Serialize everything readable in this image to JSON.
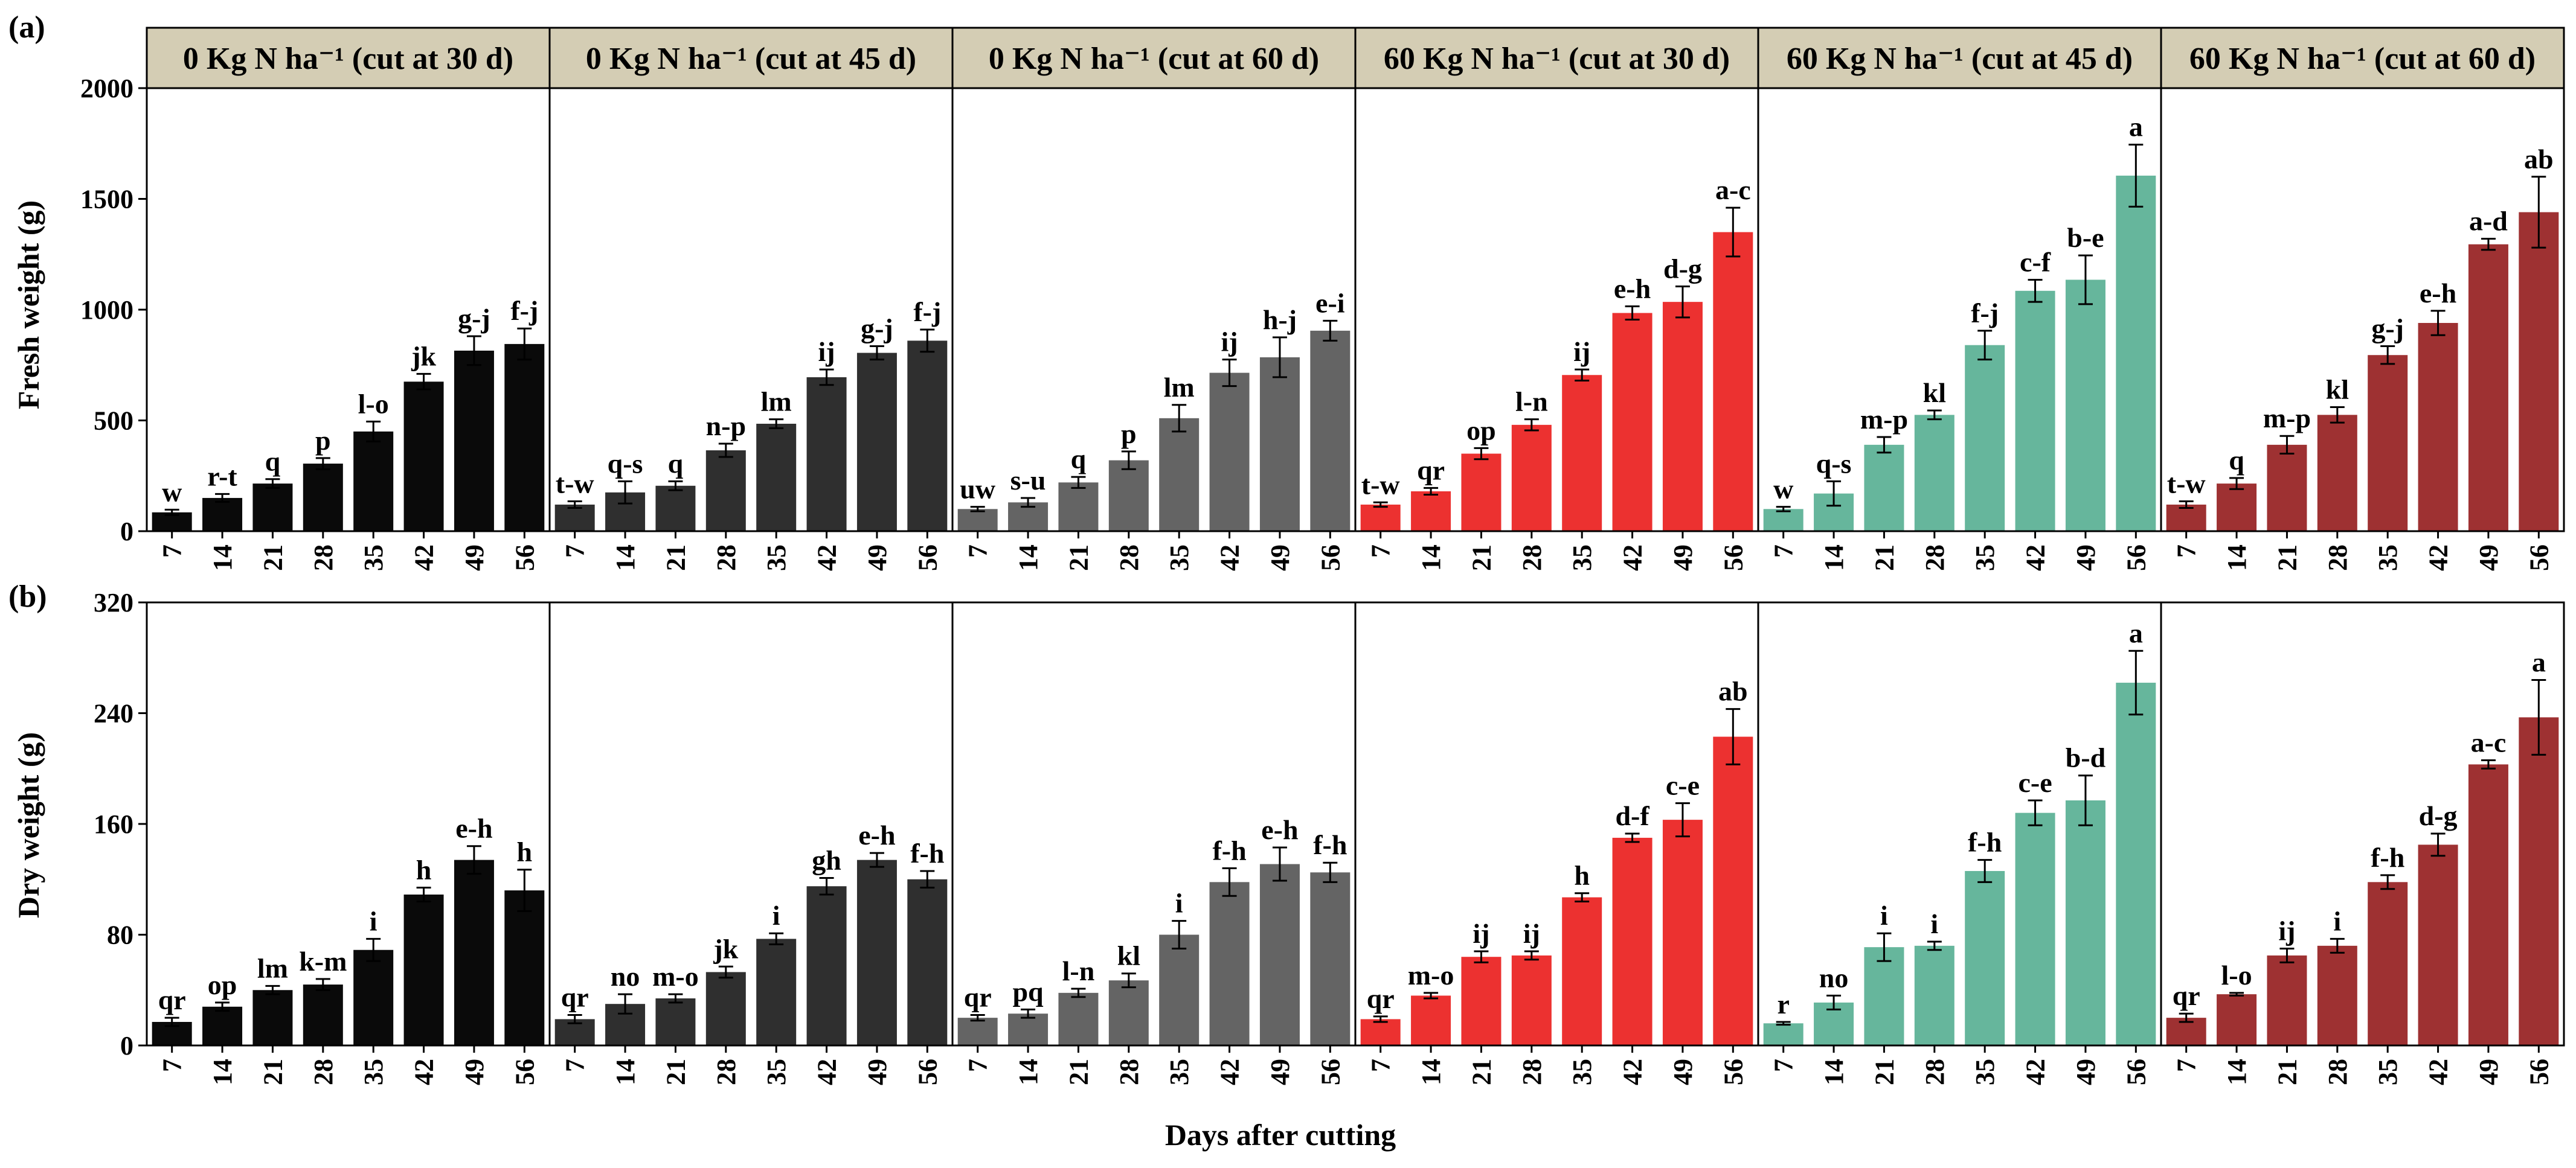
{
  "figure": {
    "x_axis_title": "Days after cutting",
    "days": [
      "7",
      "14",
      "21",
      "28",
      "35",
      "42",
      "49",
      "56"
    ],
    "colors": {
      "strip_background": "#d4cdb4",
      "axis": "#000000"
    }
  },
  "chart_data": [
    {
      "type": "bar",
      "panel_label": "(a)",
      "ylabel": "Fresh weight  (g)",
      "ylim": [
        0,
        2000
      ],
      "yticks": [
        "0",
        "500",
        "1000",
        "1500",
        "2000"
      ],
      "ytick_values": [
        0,
        500,
        1000,
        1500,
        2000
      ],
      "categories": [
        "7",
        "14",
        "21",
        "28",
        "35",
        "42",
        "49",
        "56"
      ],
      "facets": [
        {
          "title": "0 Kg N ha⁻¹ (cut at 30 d)",
          "color": "#0a0a0a",
          "values": [
            85,
            150,
            215,
            305,
            450,
            675,
            815,
            845
          ],
          "errors": [
            12,
            18,
            20,
            25,
            45,
            35,
            65,
            70
          ],
          "labels": [
            "w",
            "r-t",
            "q",
            "p",
            "l-o",
            "jk",
            "g-j",
            "f-j"
          ]
        },
        {
          "title": "0 Kg N ha⁻¹ (cut at 45 d)",
          "color": "#2f2f2f",
          "values": [
            120,
            175,
            205,
            365,
            485,
            695,
            805,
            860
          ],
          "errors": [
            15,
            50,
            20,
            30,
            20,
            35,
            30,
            50
          ],
          "labels": [
            "t-w",
            "q-s",
            "q",
            "n-p",
            "lm",
            "ij",
            "g-j",
            "f-j"
          ]
        },
        {
          "title": "0 Kg N ha⁻¹ (cut at 60 d)",
          "color": "#646464",
          "values": [
            100,
            130,
            220,
            320,
            510,
            715,
            785,
            905
          ],
          "errors": [
            10,
            20,
            25,
            40,
            60,
            60,
            90,
            45
          ],
          "labels": [
            "uw",
            "s-u",
            "q",
            "p",
            "lm",
            "ij",
            "h-j",
            "e-i"
          ]
        },
        {
          "title": "60 Kg N ha⁻¹ (cut at 30 d)",
          "color": "#ec3130",
          "values": [
            120,
            180,
            350,
            480,
            705,
            985,
            1035,
            1350
          ],
          "errors": [
            10,
            15,
            25,
            25,
            25,
            30,
            70,
            110
          ],
          "labels": [
            "t-w",
            "qr",
            "op",
            "l-n",
            "ij",
            "e-h",
            "d-g",
            "a-c"
          ]
        },
        {
          "title": "60 Kg N ha⁻¹ (cut at 45 d)",
          "color": "#66b69c",
          "values": [
            100,
            170,
            390,
            525,
            840,
            1085,
            1135,
            1605
          ],
          "errors": [
            10,
            55,
            35,
            20,
            65,
            50,
            110,
            140
          ],
          "labels": [
            "w",
            "q-s",
            "m-p",
            "kl",
            "f-j",
            "c-f",
            "b-e",
            "a"
          ]
        },
        {
          "title": "60 Kg N ha⁻¹ (cut at 60 d)",
          "color": "#9e3132",
          "values": [
            120,
            215,
            390,
            525,
            795,
            940,
            1295,
            1440
          ],
          "errors": [
            15,
            25,
            40,
            35,
            40,
            55,
            25,
            160
          ],
          "labels": [
            "t-w",
            "q",
            "m-p",
            "kl",
            "g-j",
            "e-h",
            "a-d",
            "ab"
          ]
        }
      ]
    },
    {
      "type": "bar",
      "panel_label": "(b)",
      "ylabel": "Dry weight (g)",
      "ylim": [
        0,
        320
      ],
      "yticks": [
        "0",
        "80",
        "160",
        "240",
        "320"
      ],
      "ytick_values": [
        0,
        80,
        160,
        240,
        320
      ],
      "categories": [
        "7",
        "14",
        "21",
        "28",
        "35",
        "42",
        "49",
        "56"
      ],
      "facets": [
        {
          "title": "0 Kg N ha⁻¹ (cut at 30 d)",
          "color": "#0a0a0a",
          "values": [
            17,
            28,
            40,
            44,
            69,
            109,
            134,
            112
          ],
          "errors": [
            3,
            3,
            3,
            4,
            8,
            5,
            10,
            15
          ],
          "labels": [
            "qr",
            "op",
            "lm",
            "k-m",
            "i",
            "h",
            "e-h",
            "h"
          ]
        },
        {
          "title": "0 Kg N ha⁻¹ (cut at 45 d)",
          "color": "#2f2f2f",
          "values": [
            19,
            30,
            34,
            53,
            77,
            115,
            134,
            120
          ],
          "errors": [
            3,
            7,
            3,
            4,
            4,
            6,
            5,
            6
          ],
          "labels": [
            "qr",
            "no",
            "m-o",
            "jk",
            "i",
            "gh",
            "e-h",
            "f-h"
          ]
        },
        {
          "title": "0 Kg N ha⁻¹ (cut at 60 d)",
          "color": "#646464",
          "values": [
            20,
            23,
            38,
            47,
            80,
            118,
            131,
            125
          ],
          "errors": [
            2,
            3,
            3,
            5,
            10,
            10,
            12,
            7
          ],
          "labels": [
            "qr",
            "pq",
            "l-n",
            "kl",
            "i",
            "f-h",
            "e-h",
            "f-h"
          ]
        },
        {
          "title": "60 Kg N ha⁻¹ (cut at 30 d)",
          "color": "#ec3130",
          "values": [
            19,
            36,
            64,
            65,
            107,
            150,
            163,
            223
          ],
          "errors": [
            2,
            2,
            4,
            3,
            3,
            3,
            12,
            20
          ],
          "labels": [
            "qr",
            "m-o",
            "ij",
            "ij",
            "h",
            "d-f",
            "c-e",
            "ab"
          ]
        },
        {
          "title": "60 Kg N ha⁻¹ (cut at 45 d)",
          "color": "#66b69c",
          "values": [
            16,
            31,
            71,
            72,
            126,
            168,
            177,
            262
          ],
          "errors": [
            1,
            5,
            10,
            3,
            8,
            9,
            18,
            23
          ],
          "labels": [
            "r",
            "no",
            "i",
            "i",
            "f-h",
            "c-e",
            "b-d",
            "a"
          ]
        },
        {
          "title": "60 Kg N ha⁻¹ (cut at 60 d)",
          "color": "#9e3132",
          "values": [
            20,
            37,
            65,
            72,
            118,
            145,
            203,
            237
          ],
          "errors": [
            3,
            1,
            5,
            5,
            5,
            8,
            3,
            27
          ],
          "labels": [
            "qr",
            "l-o",
            "ij",
            "i",
            "f-h",
            "d-g",
            "a-c",
            "a"
          ]
        }
      ]
    }
  ]
}
